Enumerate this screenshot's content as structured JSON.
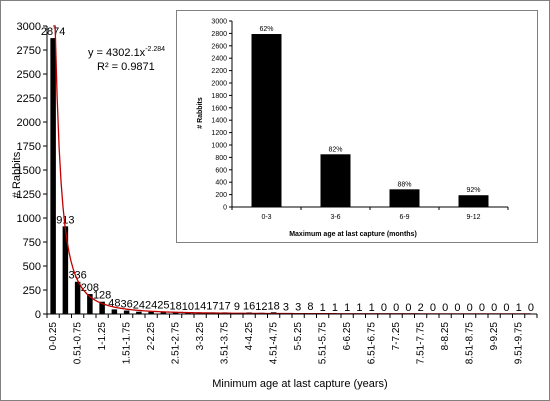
{
  "chart_data": [
    {
      "type": "bar",
      "title": "",
      "xlabel": "Minimum  age at last capture (years)",
      "ylabel": "# Rabbits",
      "ylim": [
        0,
        3000
      ],
      "yticks": [
        0,
        250,
        500,
        750,
        1000,
        1250,
        1500,
        1750,
        2000,
        2250,
        2500,
        2750,
        3000
      ],
      "categories": [
        "0-0.25",
        "0.26-0.5",
        "0.51-0.75",
        "0.76-1",
        "1-1.25",
        "1.26-1.5",
        "1.51-1.75",
        "1.76-2",
        "2-2.25",
        "2.26-2.5",
        "2.51-2.75",
        "2.76-3",
        "3-3.25",
        "3.26-3.5",
        "3.51-3.75",
        "3.76-4",
        "4-4.25",
        "4.26-4.5",
        "4.51-4.75",
        "4.76-5",
        "5-5.25",
        "5.26-5.5",
        "5.51-5.75",
        "5.76-6",
        "6-6.25",
        "6.26-6.5",
        "6.51-6.75",
        "6.76-7",
        "7-7.25",
        "7.26-7.5",
        "7.51-7.75",
        "7.76-8",
        "8-8.25",
        "8.26-8.5",
        "8.51-8.75",
        "8.76-9",
        "9-9.25",
        "9.26-9.5",
        "9.51-9.75",
        "9.76-10"
      ],
      "visible_tick_indices": [
        0,
        2,
        4,
        6,
        8,
        10,
        12,
        14,
        16,
        18,
        20,
        22,
        24,
        26,
        28,
        30,
        32,
        34,
        36,
        38
      ],
      "values": [
        2874,
        913,
        336,
        208,
        128,
        48,
        36,
        24,
        24,
        25,
        18,
        10,
        14,
        17,
        17,
        9,
        16,
        12,
        18,
        3,
        3,
        8,
        1,
        1,
        1,
        1,
        1,
        0,
        0,
        0,
        2,
        0,
        0,
        0,
        0,
        0,
        0,
        0,
        1,
        0
      ],
      "data_labels": [
        "2874",
        "913",
        "336",
        "208",
        "128",
        "48",
        "36",
        "24",
        "24",
        "25",
        "18",
        "10",
        "14",
        "17",
        "17",
        "9",
        "16",
        "12",
        "18",
        "3",
        "3",
        "8",
        "1",
        "1",
        "1",
        "1",
        "1",
        "0",
        "0",
        "0",
        "2",
        "0",
        "0",
        "0",
        "0",
        "0",
        "0",
        "0",
        "1",
        "0"
      ],
      "trendline": {
        "type": "power",
        "coefficient": 4302.1,
        "exponent": -2.284,
        "equation_text": "y = 4302.1x",
        "equation_exponent": "-2.284",
        "r2_text": "R² = 0.9871",
        "color": "#c00000"
      },
      "bar_color": "#000000",
      "grid": false
    },
    {
      "type": "bar",
      "title": "",
      "xlabel": "Maximum age at last capture (months)",
      "ylabel": "# Rabbits",
      "ylim": [
        0,
        3000
      ],
      "yticks": [
        0,
        200,
        400,
        600,
        800,
        1000,
        1200,
        1400,
        1600,
        1800,
        2000,
        2200,
        2400,
        2600,
        2800,
        3000
      ],
      "categories": [
        "0-3",
        "3-6",
        "6-9",
        "9-12"
      ],
      "values": [
        2790,
        850,
        285,
        190
      ],
      "data_labels": [
        "62%",
        "82%",
        "88%",
        "92%"
      ],
      "bar_color": "#000000",
      "grid": false
    }
  ]
}
